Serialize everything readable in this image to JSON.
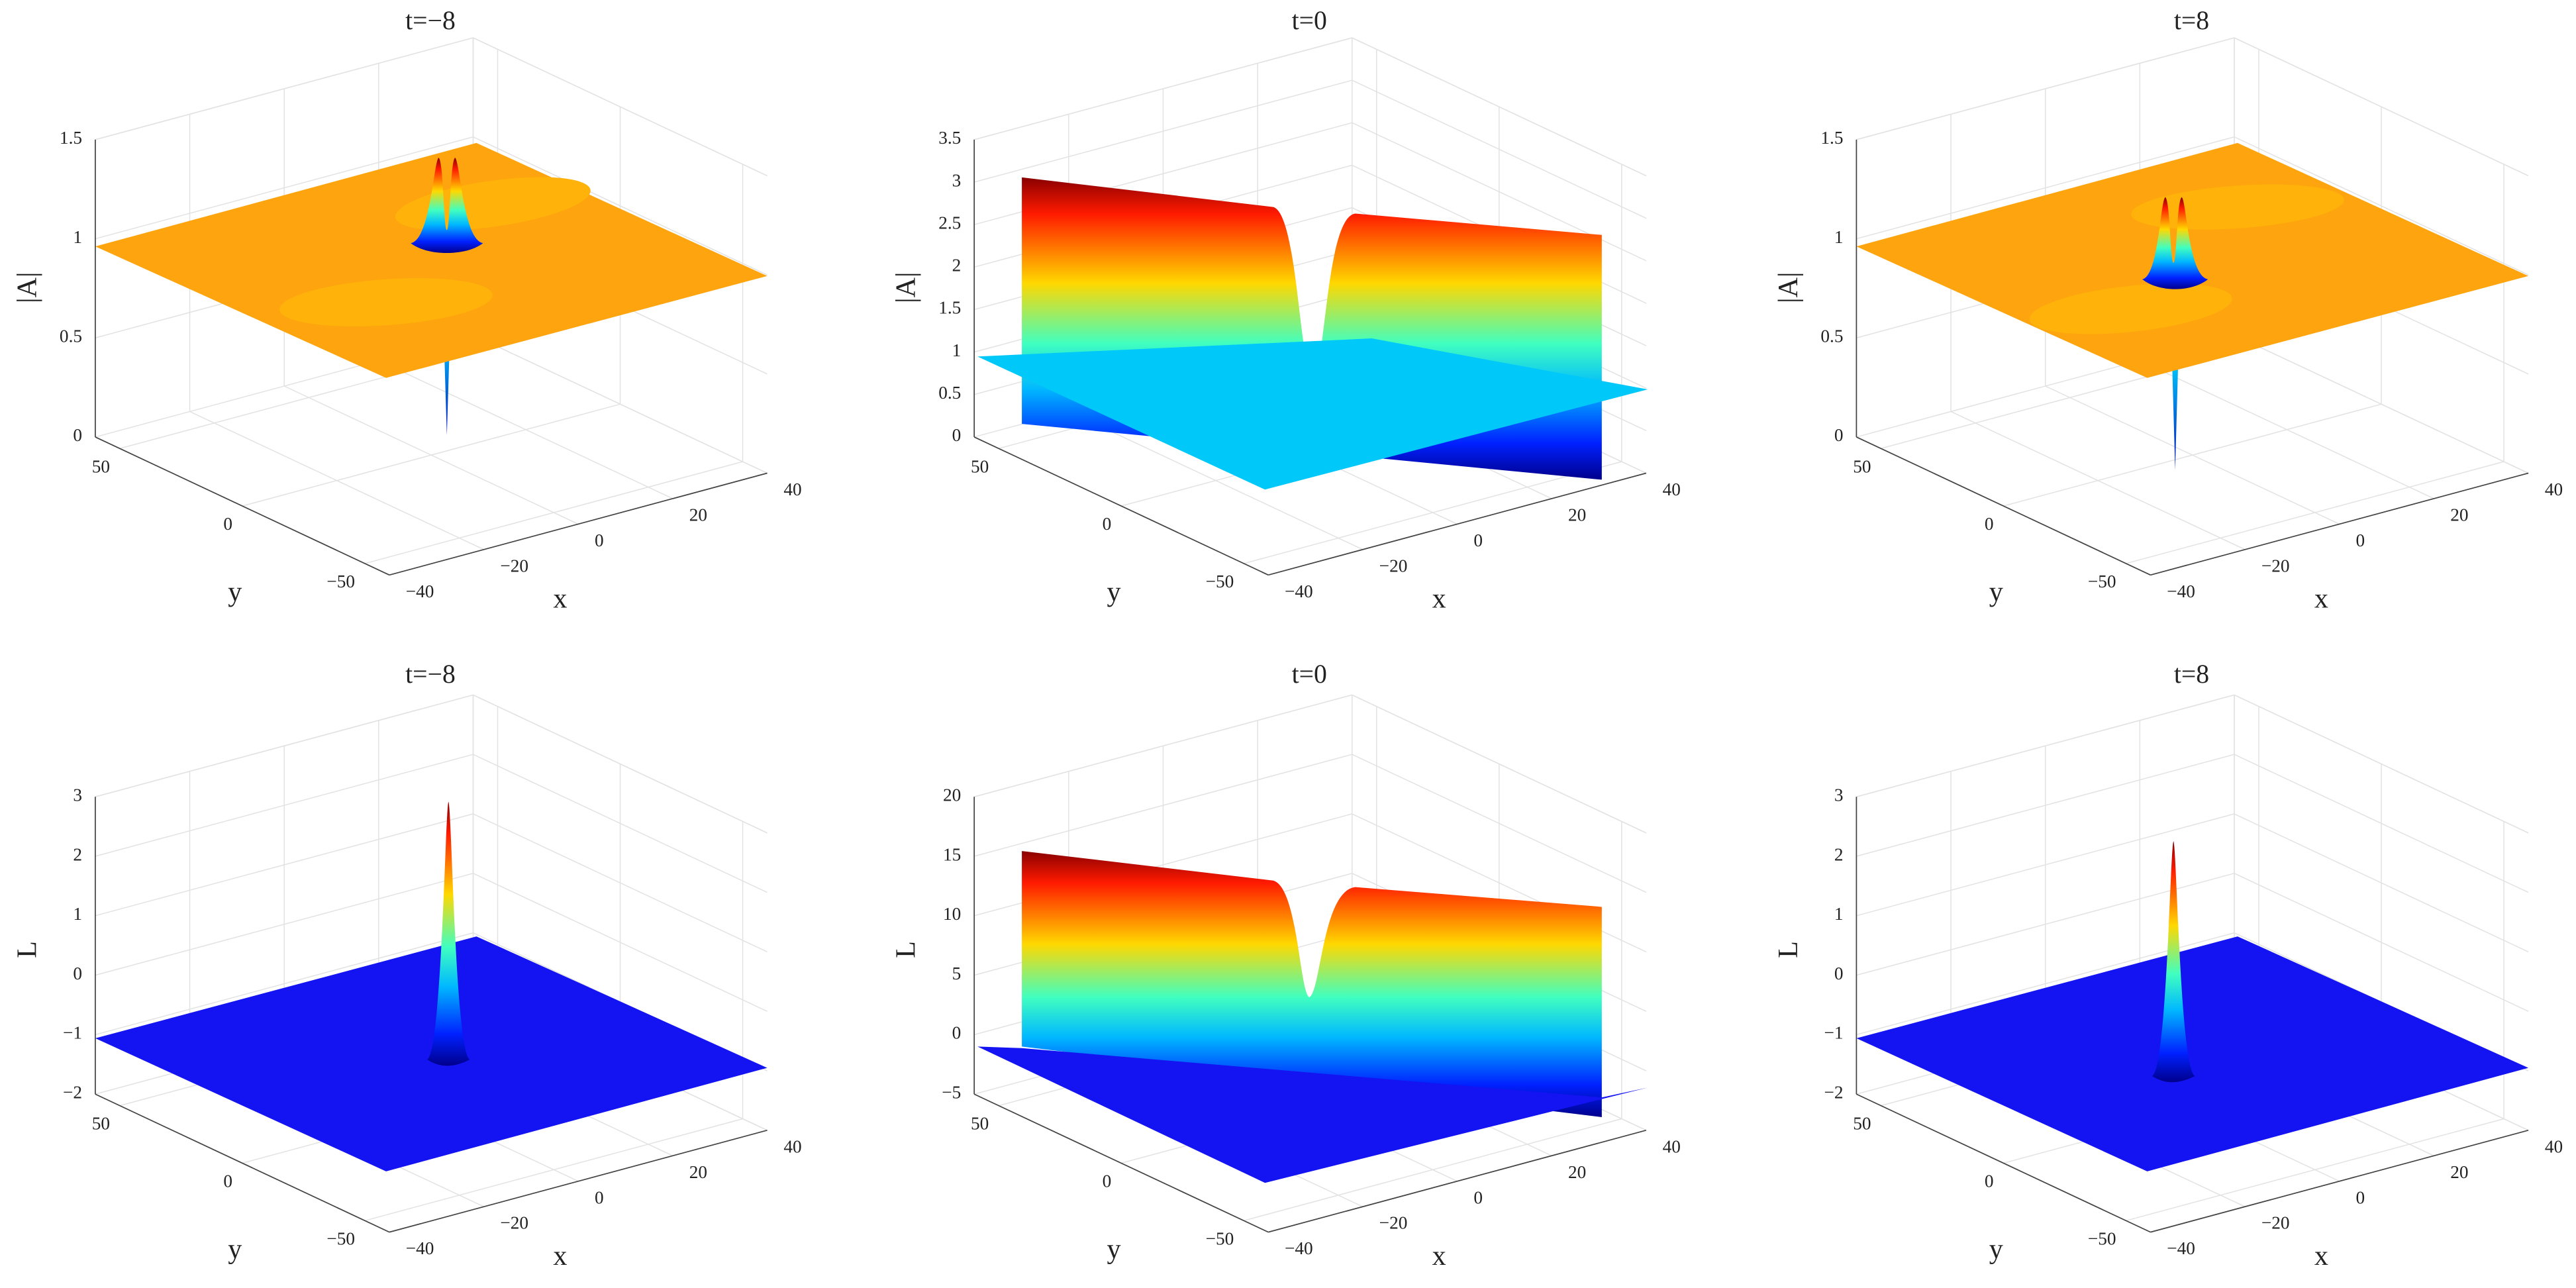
{
  "chart_data": [
    {
      "type": "surface",
      "title": "t=−8",
      "xlabel": "x",
      "ylabel": "y",
      "zlabel": "|A|",
      "xlim": [
        -40,
        40
      ],
      "ylim": [
        -60,
        60
      ],
      "zlim": [
        0,
        1.5
      ],
      "xticks": [
        {
          "value": -40,
          "label": "−40"
        },
        {
          "value": -20,
          "label": "−20"
        },
        0,
        20,
        40
      ],
      "yticks": [
        {
          "value": -50,
          "label": "−50"
        },
        0,
        50
      ],
      "zticks": [
        0,
        0.5,
        1,
        1.5
      ],
      "grid": true
    },
    {
      "type": "surface",
      "title": "t=0",
      "xlabel": "x",
      "ylabel": "y",
      "zlabel": "|A|",
      "xlim": [
        -40,
        40
      ],
      "ylim": [
        -60,
        60
      ],
      "zlim": [
        0,
        3.5
      ],
      "xticks": [
        {
          "value": -40,
          "label": "−40"
        },
        {
          "value": -20,
          "label": "−20"
        },
        0,
        20,
        40
      ],
      "yticks": [
        {
          "value": -50,
          "label": "−50"
        },
        0,
        50
      ],
      "zticks": [
        0,
        0.5,
        1,
        1.5,
        2,
        2.5,
        3,
        3.5
      ],
      "grid": true
    },
    {
      "type": "surface",
      "title": "t=8",
      "xlabel": "x",
      "ylabel": "y",
      "zlabel": "|A|",
      "xlim": [
        -40,
        40
      ],
      "ylim": [
        -60,
        60
      ],
      "zlim": [
        0,
        1.5
      ],
      "xticks": [
        {
          "value": -40,
          "label": "−40"
        },
        {
          "value": -20,
          "label": "−20"
        },
        0,
        20,
        40
      ],
      "yticks": [
        {
          "value": -50,
          "label": "−50"
        },
        0,
        50
      ],
      "zticks": [
        0,
        0.5,
        1,
        1.5
      ],
      "grid": true
    },
    {
      "type": "surface",
      "title": "t=−8",
      "xlabel": "x",
      "ylabel": "y",
      "zlabel": "L",
      "xlim": [
        -40,
        40
      ],
      "ylim": [
        -60,
        60
      ],
      "zlim": [
        -2,
        3
      ],
      "xticks": [
        {
          "value": -40,
          "label": "−40"
        },
        {
          "value": -20,
          "label": "−20"
        },
        0,
        20,
        40
      ],
      "yticks": [
        {
          "value": -50,
          "label": "−50"
        },
        0,
        50
      ],
      "zticks": [
        {
          "value": -2,
          "label": "−2"
        },
        {
          "value": -1,
          "label": "−1"
        },
        0,
        1,
        2,
        3
      ],
      "grid": true
    },
    {
      "type": "surface",
      "title": "t=0",
      "xlabel": "x",
      "ylabel": "y",
      "zlabel": "L",
      "xlim": [
        -40,
        40
      ],
      "ylim": [
        -60,
        60
      ],
      "zlim": [
        -5,
        20
      ],
      "xticks": [
        {
          "value": -40,
          "label": "−40"
        },
        {
          "value": -20,
          "label": "−20"
        },
        0,
        20,
        40
      ],
      "yticks": [
        {
          "value": -50,
          "label": "−50"
        },
        0,
        50
      ],
      "zticks": [
        {
          "value": -5,
          "label": "−5"
        },
        0,
        5,
        10,
        15,
        20
      ],
      "grid": true
    },
    {
      "type": "surface",
      "title": "t=8",
      "xlabel": "x",
      "ylabel": "y",
      "zlabel": "L",
      "xlim": [
        -40,
        40
      ],
      "ylim": [
        -60,
        60
      ],
      "zlim": [
        -2,
        3
      ],
      "xticks": [
        {
          "value": -40,
          "label": "−40"
        },
        {
          "value": -20,
          "label": "−20"
        },
        0,
        20,
        40
      ],
      "yticks": [
        {
          "value": -50,
          "label": "−50"
        },
        0,
        50
      ],
      "zticks": [
        {
          "value": -2,
          "label": "−2"
        },
        {
          "value": -1,
          "label": "−1"
        },
        0,
        1,
        2,
        3
      ],
      "grid": true
    }
  ]
}
